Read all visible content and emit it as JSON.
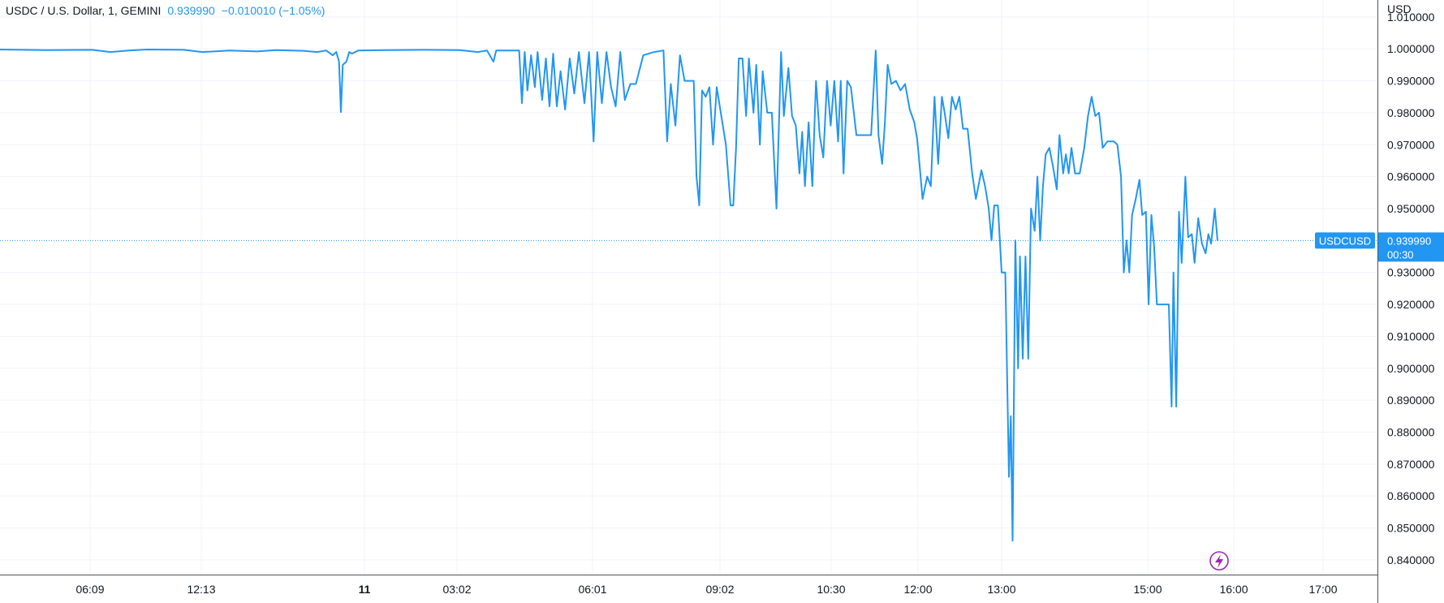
{
  "legend": {
    "symbol": "USDC / U.S. Dollar, 1, GEMINI",
    "last": "0.939990",
    "change": "−0.010010",
    "change_pct": "(−1.05%)"
  },
  "colors": {
    "line": "#2196f3",
    "legend_value": "#2196f3",
    "grid": "#f0f3fa",
    "axis": "#50535e",
    "badge_bg": "#2196f3",
    "lightning": "#9c27b0"
  },
  "icons": {
    "replay": "lightning-icon"
  },
  "price_scale": {
    "unit": "USD",
    "ticks": [
      "1.010000",
      "1.000000",
      "0.990000",
      "0.980000",
      "0.970000",
      "0.960000",
      "0.950000",
      "0.930000",
      "0.920000",
      "0.910000",
      "0.900000",
      "0.890000",
      "0.880000",
      "0.870000",
      "0.860000",
      "0.850000",
      "0.840000"
    ]
  },
  "last_price_badge": {
    "label": "USDCUSD",
    "price": "0.939990",
    "countdown": "00:30"
  },
  "time_scale": {
    "ticks": [
      {
        "label": "06:09",
        "bold": false
      },
      {
        "label": "12:13",
        "bold": false
      },
      {
        "label": "11",
        "bold": true
      },
      {
        "label": "03:02",
        "bold": false
      },
      {
        "label": "06:01",
        "bold": false
      },
      {
        "label": "09:02",
        "bold": false
      },
      {
        "label": "10:30",
        "bold": false
      },
      {
        "label": "12:00",
        "bold": false
      },
      {
        "label": "13:00",
        "bold": false
      },
      {
        "label": "15:00",
        "bold": false
      },
      {
        "label": "16:00",
        "bold": false
      },
      {
        "label": "17:00",
        "bold": false
      }
    ]
  },
  "chart_data": {
    "type": "line",
    "title": "USDC / U.S. Dollar, 1, GEMINI",
    "ylabel": "USD",
    "xlabel": "",
    "ylim": [
      0.8354,
      1.0153
    ],
    "grid": true,
    "series": [
      {
        "name": "USDCUSD",
        "x_note": "bar index (1-minute bars, uneven session spacing)",
        "points": [
          [
            0,
            0.9998
          ],
          [
            50,
            0.9996
          ],
          [
            100,
            0.9997
          ],
          [
            120,
            0.999
          ],
          [
            140,
            0.9995
          ],
          [
            160,
            0.9998
          ],
          [
            200,
            0.9997
          ],
          [
            220,
            0.999
          ],
          [
            250,
            0.9995
          ],
          [
            280,
            0.9992
          ],
          [
            300,
            0.9996
          ],
          [
            330,
            0.9994
          ],
          [
            345,
            0.999
          ],
          [
            355,
            0.9995
          ],
          [
            362,
            0.998
          ],
          [
            366,
            0.999
          ],
          [
            369,
            0.996
          ],
          [
            371,
            0.9802
          ],
          [
            373,
            0.995
          ],
          [
            377,
            0.996
          ],
          [
            380,
            0.999
          ],
          [
            383,
            0.9985
          ],
          [
            390,
            0.9995
          ],
          [
            420,
            0.9996
          ],
          [
            460,
            0.9997
          ],
          [
            500,
            0.9996
          ],
          [
            520,
            0.999
          ],
          [
            530,
            0.9995
          ],
          [
            537,
            0.996
          ],
          [
            540,
            0.9995
          ],
          [
            565,
            0.9995
          ],
          [
            568,
            0.983
          ],
          [
            571,
            0.999
          ],
          [
            574,
            0.987
          ],
          [
            578,
            0.998
          ],
          [
            582,
            0.988
          ],
          [
            585,
            0.999
          ],
          [
            590,
            0.984
          ],
          [
            594,
            0.997
          ],
          [
            598,
            0.982
          ],
          [
            602,
            0.9985
          ],
          [
            606,
            0.982
          ],
          [
            610,
            0.993
          ],
          [
            615,
            0.981
          ],
          [
            620,
            0.997
          ],
          [
            625,
            0.986
          ],
          [
            630,
            0.999
          ],
          [
            636,
            0.983
          ],
          [
            641,
            0.999
          ],
          [
            646,
            0.971
          ],
          [
            650,
            0.999
          ],
          [
            655,
            0.983
          ],
          [
            660,
            0.999
          ],
          [
            665,
            0.988
          ],
          [
            670,
            0.982
          ],
          [
            675,
            0.999
          ],
          [
            680,
            0.984
          ],
          [
            686,
            0.989
          ],
          [
            692,
            0.989
          ],
          [
            700,
            0.998
          ],
          [
            712,
            0.999
          ],
          [
            722,
            0.9995
          ],
          [
            726,
            0.971
          ],
          [
            730,
            0.989
          ],
          [
            735,
            0.976
          ],
          [
            740,
            0.998
          ],
          [
            745,
            0.99
          ],
          [
            755,
            0.99
          ],
          [
            758,
            0.96
          ],
          [
            761,
            0.951
          ],
          [
            764,
            0.987
          ],
          [
            768,
            0.985
          ],
          [
            772,
            0.988
          ],
          [
            776,
            0.97
          ],
          [
            780,
            0.988
          ],
          [
            790,
            0.97
          ],
          [
            795,
            0.951
          ],
          [
            798,
            0.951
          ],
          [
            801,
            0.969
          ],
          [
            804,
            0.997
          ],
          [
            808,
            0.997
          ],
          [
            812,
            0.979
          ],
          [
            815,
            0.997
          ],
          [
            820,
            0.98
          ],
          [
            823,
            0.995
          ],
          [
            827,
            0.97
          ],
          [
            830,
            0.993
          ],
          [
            835,
            0.98
          ],
          [
            840,
            0.98
          ],
          [
            845,
            0.95
          ],
          [
            850,
            0.999
          ],
          [
            853,
            0.979
          ],
          [
            858,
            0.994
          ],
          [
            862,
            0.979
          ],
          [
            866,
            0.976
          ],
          [
            870,
            0.961
          ],
          [
            873,
            0.974
          ],
          [
            876,
            0.957
          ],
          [
            880,
            0.977
          ],
          [
            884,
            0.957
          ],
          [
            888,
            0.99
          ],
          [
            892,
            0.973
          ],
          [
            896,
            0.966
          ],
          [
            900,
            0.99
          ],
          [
            904,
            0.976
          ],
          [
            908,
            0.99
          ],
          [
            912,
            0.971
          ],
          [
            915,
            0.99
          ],
          [
            918,
            0.961
          ],
          [
            922,
            0.99
          ],
          [
            926,
            0.988
          ],
          [
            932,
            0.973
          ],
          [
            940,
            0.973
          ],
          [
            948,
            0.973
          ],
          [
            953,
            0.9995
          ],
          [
            956,
            0.973
          ],
          [
            960,
            0.964
          ],
          [
            963,
            0.977
          ],
          [
            966,
            0.995
          ],
          [
            970,
            0.989
          ],
          [
            975,
            0.99
          ],
          [
            980,
            0.987
          ],
          [
            985,
            0.989
          ],
          [
            990,
            0.981
          ],
          [
            995,
            0.977
          ],
          [
            998,
            0.972
          ],
          [
            1000,
            0.966
          ],
          [
            1004,
            0.953
          ],
          [
            1009,
            0.96
          ],
          [
            1013,
            0.957
          ],
          [
            1017,
            0.985
          ],
          [
            1021,
            0.964
          ],
          [
            1025,
            0.985
          ],
          [
            1028,
            0.98
          ],
          [
            1032,
            0.972
          ],
          [
            1036,
            0.985
          ],
          [
            1040,
            0.981
          ],
          [
            1044,
            0.985
          ],
          [
            1048,
            0.975
          ],
          [
            1053,
            0.975
          ],
          [
            1058,
            0.961
          ],
          [
            1062,
            0.953
          ],
          [
            1068,
            0.962
          ],
          [
            1072,
            0.957
          ],
          [
            1076,
            0.95
          ],
          [
            1079,
            0.94
          ],
          [
            1082,
            0.951
          ],
          [
            1086,
            0.951
          ],
          [
            1090,
            0.93
          ],
          [
            1094,
            0.93
          ],
          [
            1098,
            0.866
          ],
          [
            1100,
            0.885
          ],
          [
            1102,
            0.846
          ],
          [
            1105,
            0.94
          ],
          [
            1108,
            0.9
          ],
          [
            1110,
            0.935
          ],
          [
            1113,
            0.903
          ],
          [
            1116,
            0.935
          ],
          [
            1119,
            0.903
          ],
          [
            1122,
            0.95
          ],
          [
            1126,
            0.943
          ],
          [
            1129,
            0.96
          ],
          [
            1132,
            0.94
          ],
          [
            1135,
            0.957
          ],
          [
            1138,
            0.967
          ],
          [
            1142,
            0.969
          ],
          [
            1146,
            0.963
          ],
          [
            1150,
            0.956
          ],
          [
            1153,
            0.973
          ],
          [
            1157,
            0.961
          ],
          [
            1160,
            0.967
          ],
          [
            1163,
            0.961
          ],
          [
            1166,
            0.969
          ],
          [
            1170,
            0.961
          ],
          [
            1175,
            0.961
          ],
          [
            1180,
            0.969
          ],
          [
            1184,
            0.979
          ],
          [
            1188,
            0.985
          ],
          [
            1192,
            0.979
          ],
          [
            1196,
            0.98
          ],
          [
            1200,
            0.969
          ],
          [
            1205,
            0.971
          ],
          [
            1212,
            0.971
          ],
          [
            1216,
            0.97
          ],
          [
            1220,
            0.96
          ],
          [
            1223,
            0.93
          ],
          [
            1226,
            0.94
          ],
          [
            1229,
            0.93
          ],
          [
            1232,
            0.948
          ],
          [
            1236,
            0.953
          ],
          [
            1240,
            0.959
          ],
          [
            1243,
            0.948
          ],
          [
            1247,
            0.949
          ],
          [
            1250,
            0.92
          ],
          [
            1253,
            0.948
          ],
          [
            1256,
            0.938
          ],
          [
            1259,
            0.92
          ],
          [
            1263,
            0.92
          ],
          [
            1268,
            0.92
          ],
          [
            1272,
            0.92
          ],
          [
            1275,
            0.888
          ],
          [
            1277,
            0.93
          ],
          [
            1280,
            0.888
          ],
          [
            1283,
            0.949
          ],
          [
            1286,
            0.933
          ],
          [
            1290,
            0.96
          ],
          [
            1293,
            0.941
          ],
          [
            1297,
            0.942
          ],
          [
            1300,
            0.933
          ],
          [
            1304,
            0.947
          ],
          [
            1308,
            0.939
          ],
          [
            1312,
            0.936
          ],
          [
            1315,
            0.942
          ],
          [
            1318,
            0.939
          ],
          [
            1322,
            0.95
          ],
          [
            1325,
            0.9399
          ]
        ]
      }
    ],
    "last_value": 0.93999
  }
}
